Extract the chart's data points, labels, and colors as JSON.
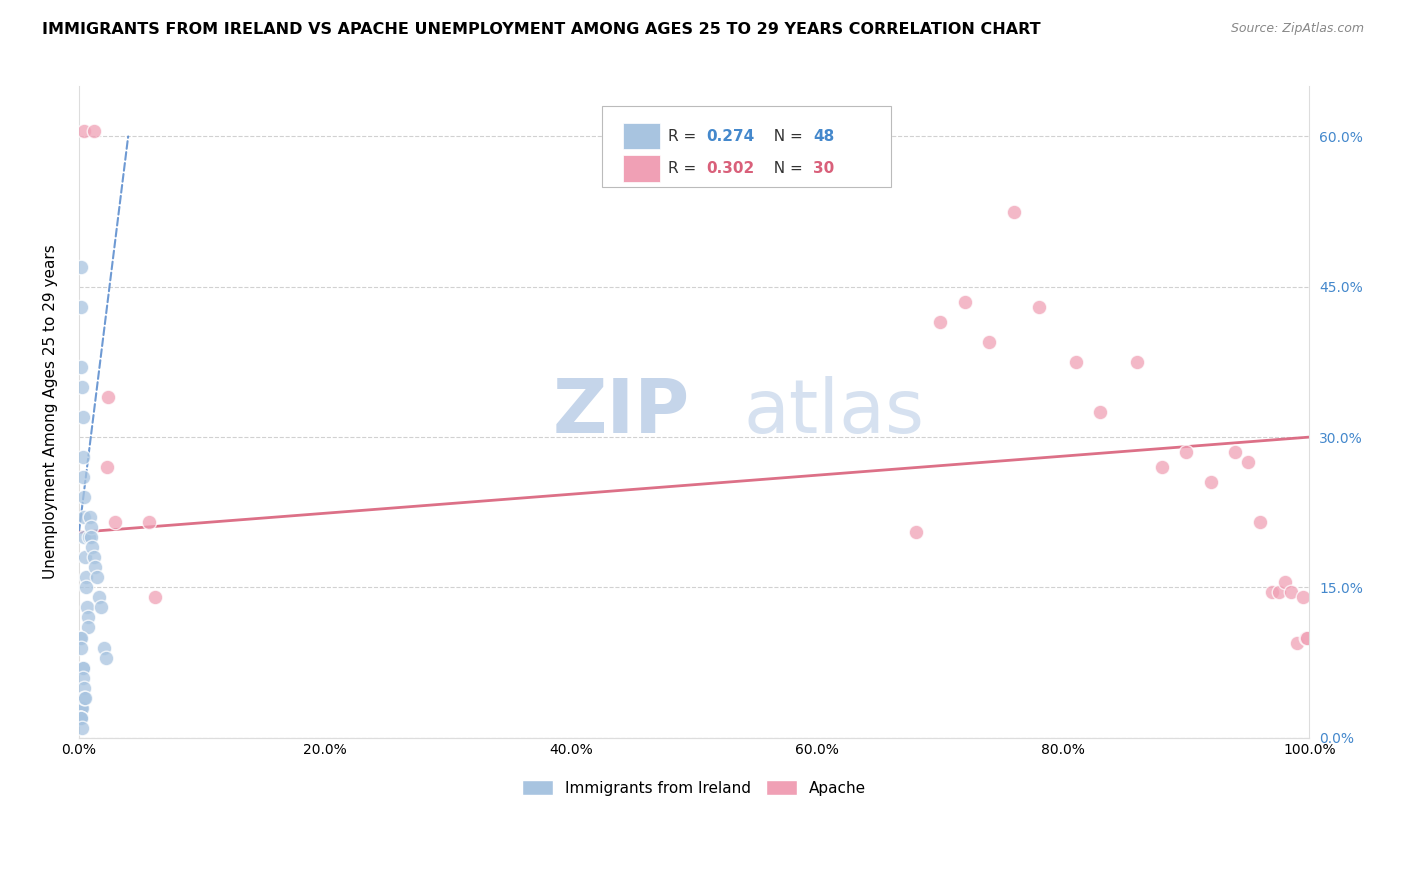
{
  "title": "IMMIGRANTS FROM IRELAND VS APACHE UNEMPLOYMENT AMONG AGES 25 TO 29 YEARS CORRELATION CHART",
  "source": "Source: ZipAtlas.com",
  "ylabel": "Unemployment Among Ages 25 to 29 years",
  "legend_label1": "Immigrants from Ireland",
  "legend_label2": "Apache",
  "r1": 0.274,
  "n1": 48,
  "r2": 0.302,
  "n2": 30,
  "color1": "#a8c4e0",
  "color2": "#f0a0b5",
  "trendline1_color": "#5588cc",
  "trendline2_color": "#d9607a",
  "watermark_zip_color": "#c8d8ee",
  "watermark_atlas_color": "#c0cce0",
  "xlim": [
    0.0,
    1.0
  ],
  "ylim": [
    0.0,
    0.65
  ],
  "ytick_positions": [
    0.0,
    0.15,
    0.3,
    0.45,
    0.6
  ],
  "ytick_labels": [
    "0.0%",
    "15.0%",
    "30.0%",
    "45.0%",
    "60.0%"
  ],
  "xtick_positions": [
    0.0,
    0.2,
    0.4,
    0.6,
    0.8,
    1.0
  ],
  "xtick_labels": [
    "0.0%",
    "20.0%",
    "40.0%",
    "60.0%",
    "80.0%",
    "100.0%"
  ],
  "blue_trendline_x": [
    0.0,
    0.04
  ],
  "blue_trendline_y": [
    0.205,
    0.6
  ],
  "pink_trendline_x": [
    0.0,
    1.0
  ],
  "pink_trendline_y": [
    0.205,
    0.3
  ],
  "blue_x": [
    0.0015,
    0.0015,
    0.002,
    0.0025,
    0.003,
    0.003,
    0.0035,
    0.004,
    0.004,
    0.0045,
    0.005,
    0.0055,
    0.006,
    0.0065,
    0.007,
    0.0075,
    0.008,
    0.009,
    0.0095,
    0.01,
    0.011,
    0.012,
    0.013,
    0.015,
    0.016,
    0.018,
    0.02,
    0.022,
    0.001,
    0.001,
    0.001,
    0.0015,
    0.002,
    0.0025,
    0.003,
    0.003,
    0.0035,
    0.004,
    0.0045,
    0.005,
    0.001,
    0.0015,
    0.002,
    0.001,
    0.0012,
    0.0015,
    0.0018,
    0.0025
  ],
  "blue_y": [
    0.47,
    0.43,
    0.37,
    0.35,
    0.32,
    0.28,
    0.26,
    0.24,
    0.22,
    0.2,
    0.18,
    0.16,
    0.15,
    0.13,
    0.12,
    0.11,
    0.2,
    0.22,
    0.21,
    0.2,
    0.19,
    0.18,
    0.17,
    0.16,
    0.14,
    0.13,
    0.09,
    0.08,
    0.02,
    0.02,
    0.02,
    0.03,
    0.03,
    0.03,
    0.07,
    0.07,
    0.06,
    0.05,
    0.04,
    0.04,
    0.1,
    0.1,
    0.09,
    0.02,
    0.02,
    0.02,
    0.02,
    0.01
  ],
  "pink_x": [
    0.004,
    0.012,
    0.023,
    0.029,
    0.057,
    0.062,
    0.024,
    0.68,
    0.7,
    0.72,
    0.74,
    0.76,
    0.78,
    0.81,
    0.83,
    0.86,
    0.88,
    0.9,
    0.92,
    0.94,
    0.95,
    0.96,
    0.97,
    0.975,
    0.98,
    0.985,
    0.99,
    0.995,
    0.997,
    0.998
  ],
  "pink_y": [
    0.605,
    0.605,
    0.27,
    0.215,
    0.215,
    0.14,
    0.34,
    0.205,
    0.415,
    0.435,
    0.395,
    0.525,
    0.43,
    0.375,
    0.325,
    0.375,
    0.27,
    0.285,
    0.255,
    0.285,
    0.275,
    0.215,
    0.145,
    0.145,
    0.155,
    0.145,
    0.095,
    0.14,
    0.1,
    0.1
  ]
}
